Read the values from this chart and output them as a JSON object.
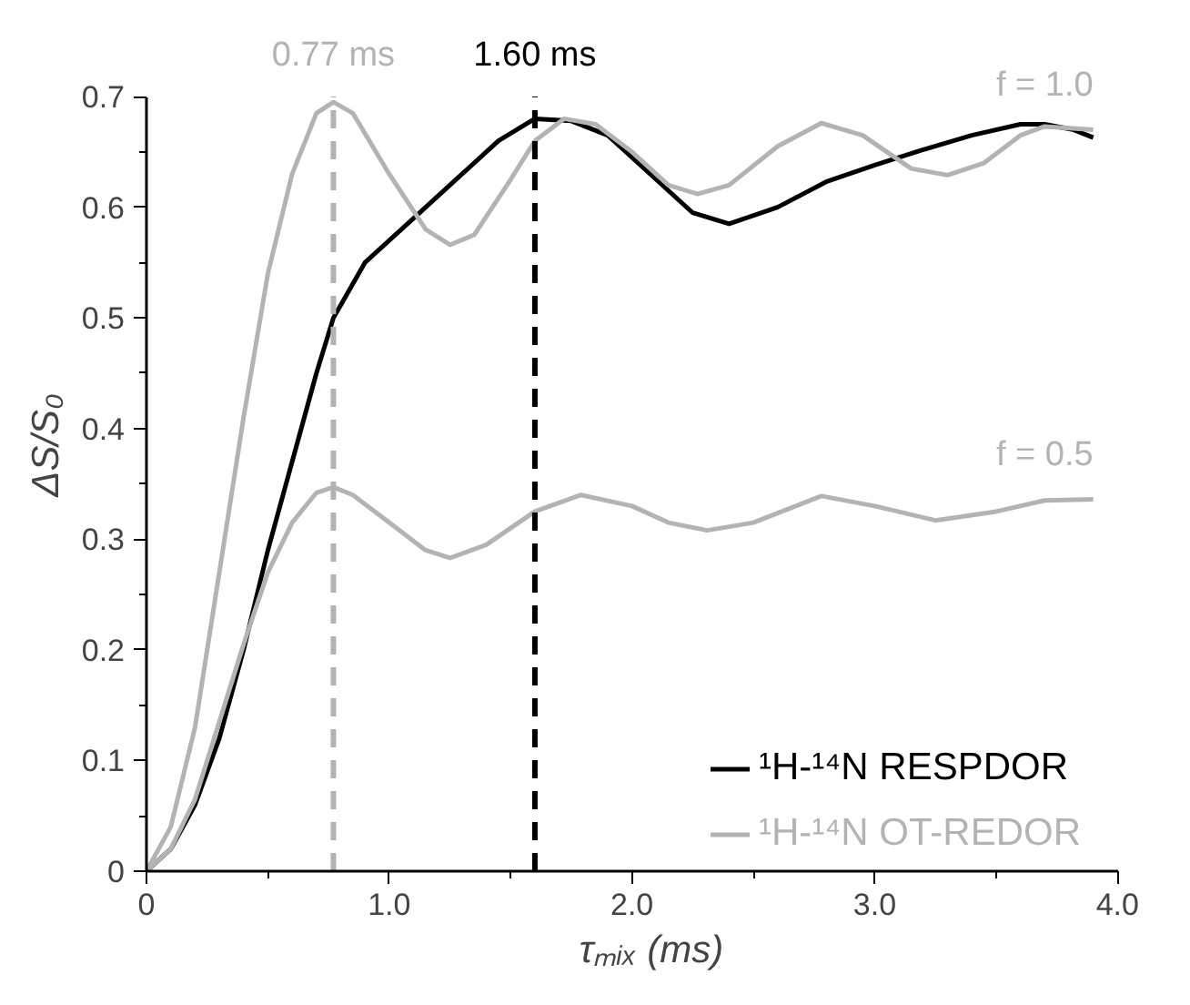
{
  "chart_data": {
    "type": "line",
    "xlabel": "τₘᵢₓ (ms)",
    "ylabel": "ΔS/S₀",
    "xlim": [
      0,
      4.0
    ],
    "ylim": [
      0,
      0.7
    ],
    "xticks": [
      {
        "value": 0,
        "label": "0"
      },
      {
        "value": 0.5,
        "label": null
      },
      {
        "value": 1.0,
        "label": "1.0"
      },
      {
        "value": 1.5,
        "label": null
      },
      {
        "value": 2.0,
        "label": "2.0"
      },
      {
        "value": 2.5,
        "label": null
      },
      {
        "value": 3.0,
        "label": "3.0"
      },
      {
        "value": 3.5,
        "label": null
      },
      {
        "value": 4.0,
        "label": "4.0"
      }
    ],
    "yticks": [
      0,
      {
        "value": 0.05,
        "label": null
      },
      0.1,
      {
        "value": 0.15,
        "label": null
      },
      0.2,
      {
        "value": 0.25,
        "label": null
      },
      0.3,
      {
        "value": 0.35,
        "label": null
      },
      0.4,
      {
        "value": 0.45,
        "label": null
      },
      0.5,
      {
        "value": 0.55,
        "label": null
      },
      0.6,
      {
        "value": 0.65,
        "label": null
      },
      0.7
    ],
    "grid": false,
    "legend": "bottom right",
    "marker": "none",
    "line_style": "solid",
    "series": [
      {
        "name": "¹H-¹⁴N RESPDOR",
        "color": "#000000",
        "x": [
          0,
          0.1,
          0.2,
          0.3,
          0.4,
          0.5,
          0.6,
          0.7,
          0.77,
          0.9,
          1.1,
          1.3,
          1.45,
          1.6,
          1.75,
          1.9,
          2.1,
          2.25,
          2.4,
          2.6,
          2.8,
          3.0,
          3.2,
          3.4,
          3.6,
          3.7,
          3.82,
          3.9
        ],
        "values": [
          0,
          0.02,
          0.06,
          0.12,
          0.2,
          0.29,
          0.37,
          0.45,
          0.5,
          0.55,
          0.59,
          0.63,
          0.66,
          0.68,
          0.678,
          0.665,
          0.625,
          0.595,
          0.585,
          0.6,
          0.623,
          0.638,
          0.652,
          0.665,
          0.675,
          0.675,
          0.67,
          0.663
        ]
      },
      {
        "name": "¹H-¹⁴N OT-REDOR",
        "color": "#b3b3b3",
        "x": [
          0,
          0.1,
          0.2,
          0.3,
          0.4,
          0.5,
          0.6,
          0.7,
          0.77,
          0.85,
          1.0,
          1.15,
          1.25,
          1.35,
          1.5,
          1.6,
          1.72,
          1.85,
          2.0,
          2.15,
          2.27,
          2.4,
          2.6,
          2.78,
          2.95,
          3.15,
          3.3,
          3.45,
          3.6,
          3.7,
          3.9
        ],
        "values": [
          0,
          0.04,
          0.13,
          0.27,
          0.41,
          0.54,
          0.63,
          0.685,
          0.695,
          0.685,
          0.63,
          0.58,
          0.566,
          0.575,
          0.625,
          0.66,
          0.68,
          0.675,
          0.65,
          0.62,
          0.612,
          0.62,
          0.655,
          0.676,
          0.665,
          0.635,
          0.629,
          0.64,
          0.665,
          0.673,
          0.67
        ]
      },
      {
        "color": "#b3b3b3",
        "x": [
          0,
          0.1,
          0.2,
          0.3,
          0.4,
          0.5,
          0.6,
          0.7,
          0.77,
          0.85,
          1.0,
          1.15,
          1.25,
          1.4,
          1.6,
          1.79,
          2.0,
          2.15,
          2.31,
          2.5,
          2.78,
          3.0,
          3.25,
          3.5,
          3.7,
          3.9
        ],
        "values": [
          0,
          0.02,
          0.065,
          0.135,
          0.205,
          0.27,
          0.315,
          0.342,
          0.347,
          0.34,
          0.315,
          0.29,
          0.283,
          0.295,
          0.325,
          0.34,
          0.33,
          0.315,
          0.308,
          0.315,
          0.339,
          0.33,
          0.317,
          0.325,
          0.335,
          0.336
        ]
      }
    ],
    "ref_lines": [
      {
        "axis": "x",
        "value": 0.77,
        "label": "0.77 ms",
        "color": "#b3b3b3",
        "line_style": "dashed"
      },
      {
        "axis": "x",
        "value": 1.6,
        "label": "1.60 ms",
        "color": "#000000",
        "line_style": "dashed"
      }
    ],
    "annotations": [
      {
        "text": "f = 1.0",
        "x": 3.9,
        "y": 0.67
      },
      {
        "text": "f = 0.5",
        "x": 3.9,
        "y": 0.336
      }
    ]
  }
}
